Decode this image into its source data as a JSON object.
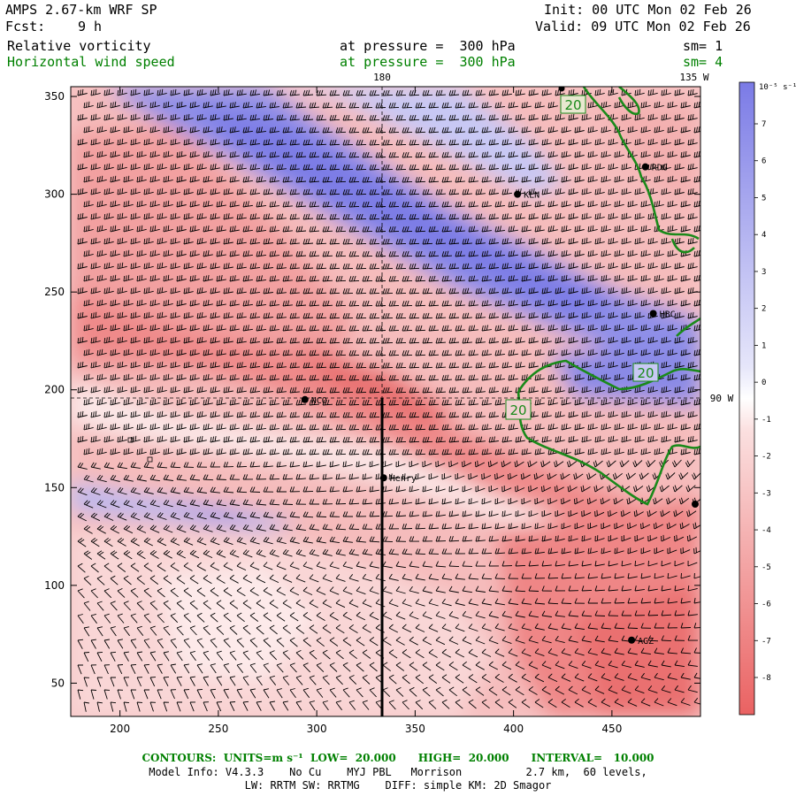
{
  "header": {
    "model": "AMPS 2.67-km WRF SP",
    "fcst_label": "Fcst:",
    "fcst_value": "9 h",
    "init": "Init: 00 UTC Mon 02 Feb 26",
    "valid": "Valid: 09 UTC Mon 02 Feb 26",
    "field1": "Relative vorticity",
    "field2": "Horizontal wind speed",
    "level1": "at pressure =  300 hPa",
    "level2": "at pressure =  300 hPa",
    "sm1": "sm= 1",
    "sm2": "sm= 4",
    "green_color": "#008000"
  },
  "map": {
    "x_ticks": [
      "200",
      "250",
      "300",
      "350",
      "400",
      "450"
    ],
    "y_ticks": [
      "50",
      "100",
      "150",
      "200",
      "250",
      "300",
      "350"
    ],
    "x_tick_values": [
      200,
      250,
      300,
      350,
      400,
      450
    ],
    "y_tick_values": [
      50,
      100,
      150,
      200,
      250,
      300,
      350
    ],
    "x_range": [
      175,
      495
    ],
    "y_range": [
      33,
      355
    ],
    "lon_labels": {
      "top_180": "180",
      "top_135w": "135 W",
      "right_90w": "90 W"
    },
    "stations": [
      {
        "name": "NCO",
        "x": 294,
        "y": 195
      },
      {
        "name": "KLN",
        "x": 402,
        "y": 300
      },
      {
        "name": "RDG",
        "x": 467,
        "y": 314
      },
      {
        "name": "HBC",
        "x": 471,
        "y": 239
      },
      {
        "name": "Henry",
        "x": 334,
        "y": 155
      },
      {
        "name": "AGZ",
        "x": 460,
        "y": 72
      }
    ],
    "contour_labels": [
      "20",
      "20",
      "20"
    ],
    "colors": {
      "positive": "#6d6de8",
      "negative": "#e85a5a",
      "contour": "#1a8a1a"
    }
  },
  "colorbar": {
    "unit": "10⁻⁵ s⁻¹",
    "labels": [
      "7",
      "6",
      "5",
      "4",
      "3",
      "2",
      "1",
      "0",
      "-1",
      "-2",
      "-3",
      "-4",
      "-5",
      "-6",
      "-7",
      "-8"
    ]
  },
  "footer": {
    "contours": "CONTOURS:  UNITS=m s⁻¹  LOW=  20.000      HIGH=  20.000      INTERVAL=   10.000",
    "model_info": "Model Info: V4.3.3    No Cu    MYJ PBL   Morrison          2.7 km,  60 levels,",
    "physics": "LW: RRTM SW: RRTMG    DIFF: simple KM: 2D Smagor"
  }
}
